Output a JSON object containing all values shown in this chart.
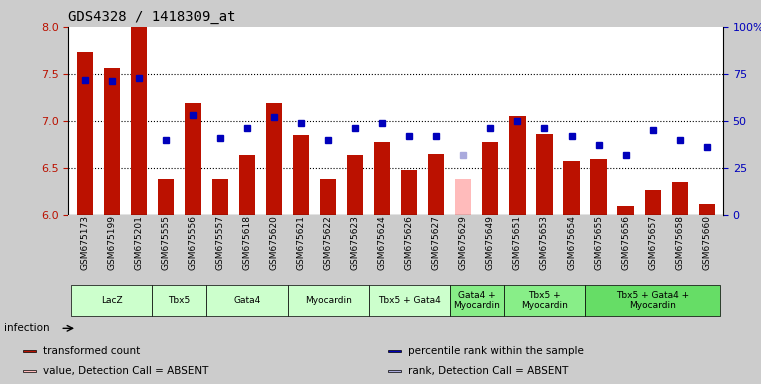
{
  "title": "GDS4328 / 1418309_at",
  "samples": [
    "GSM675173",
    "GSM675199",
    "GSM675201",
    "GSM675555",
    "GSM675556",
    "GSM675557",
    "GSM675618",
    "GSM675620",
    "GSM675621",
    "GSM675622",
    "GSM675623",
    "GSM675624",
    "GSM675626",
    "GSM675627",
    "GSM675629",
    "GSM675649",
    "GSM675651",
    "GSM675653",
    "GSM675654",
    "GSM675655",
    "GSM675656",
    "GSM675657",
    "GSM675658",
    "GSM675660"
  ],
  "bar_values": [
    7.73,
    7.56,
    8.0,
    6.38,
    7.19,
    6.38,
    6.64,
    7.19,
    6.85,
    6.38,
    6.64,
    6.78,
    6.48,
    6.65,
    6.38,
    6.78,
    7.05,
    6.86,
    6.57,
    6.6,
    6.1,
    6.27,
    6.35,
    6.12
  ],
  "bar_absent": [
    false,
    false,
    false,
    false,
    false,
    false,
    false,
    false,
    false,
    false,
    false,
    false,
    false,
    false,
    true,
    false,
    false,
    false,
    false,
    false,
    false,
    false,
    false,
    false
  ],
  "dot_percentiles": [
    72,
    71,
    73,
    40,
    53,
    41,
    46,
    52,
    49,
    40,
    46,
    49,
    42,
    42,
    32,
    46,
    50,
    46,
    42,
    37,
    32,
    45,
    40,
    36
  ],
  "dot_absent": [
    false,
    false,
    false,
    false,
    false,
    false,
    false,
    false,
    false,
    false,
    false,
    false,
    false,
    false,
    true,
    false,
    false,
    false,
    false,
    false,
    false,
    false,
    false,
    false
  ],
  "bar_color": "#bb1100",
  "bar_absent_color": "#ffbbbb",
  "dot_color": "#0000bb",
  "dot_absent_color": "#aaaadd",
  "ylim_left": [
    6.0,
    8.0
  ],
  "ylim_right": [
    0,
    100
  ],
  "yticks_left": [
    6.0,
    6.5,
    7.0,
    7.5,
    8.0
  ],
  "yticks_right": [
    0,
    25,
    50,
    75,
    100
  ],
  "groups": [
    {
      "label": "LacZ",
      "indices": [
        0,
        1,
        2
      ],
      "color": "#ccffcc"
    },
    {
      "label": "Tbx5",
      "indices": [
        3,
        4
      ],
      "color": "#ccffcc"
    },
    {
      "label": "Gata4",
      "indices": [
        5,
        6,
        7
      ],
      "color": "#ccffcc"
    },
    {
      "label": "Myocardin",
      "indices": [
        8,
        9,
        10
      ],
      "color": "#ccffcc"
    },
    {
      "label": "Tbx5 + Gata4",
      "indices": [
        11,
        12,
        13
      ],
      "color": "#ccffcc"
    },
    {
      "label": "Gata4 +\nMyocardin",
      "indices": [
        14,
        15
      ],
      "color": "#88ee88"
    },
    {
      "label": "Tbx5 +\nMyocardin",
      "indices": [
        16,
        17,
        18
      ],
      "color": "#88ee88"
    },
    {
      "label": "Tbx5 + Gata4 +\nMyocardin",
      "indices": [
        19,
        20,
        21,
        22,
        23
      ],
      "color": "#66dd66"
    }
  ],
  "legend_items": [
    {
      "color": "#bb1100",
      "label": "transformed count"
    },
    {
      "color": "#0000bb",
      "label": "percentile rank within the sample"
    },
    {
      "color": "#ffbbbb",
      "label": "value, Detection Call = ABSENT"
    },
    {
      "color": "#aaaadd",
      "label": "rank, Detection Call = ABSENT"
    }
  ],
  "bg_color": "#cccccc",
  "plot_bg_color": "#ffffff",
  "fig_width": 7.61,
  "fig_height": 3.84,
  "dpi": 100
}
